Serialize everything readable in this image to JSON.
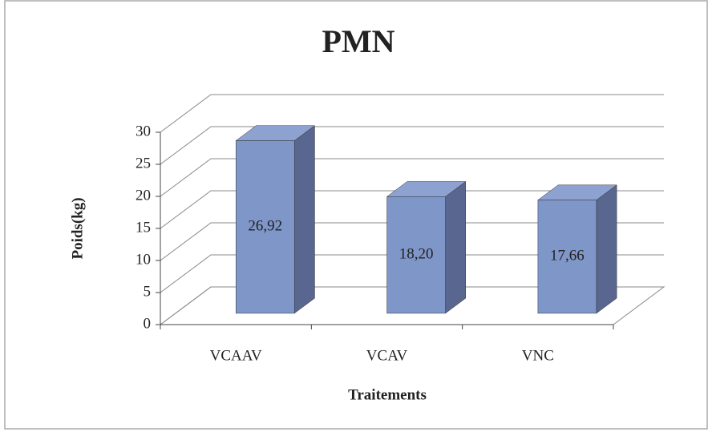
{
  "chart_data": {
    "type": "bar3d",
    "title": "PMN",
    "x_label": "Traitements",
    "y_label": "Poids(kg)",
    "categories": [
      "VCAAV",
      "VCAV",
      "VNC"
    ],
    "values": [
      26.92,
      18.2,
      17.66
    ],
    "value_labels": [
      "26,92",
      "18,20",
      "17,66"
    ],
    "color": "#7f96c8",
    "ylim": [
      0,
      30
    ],
    "yticks": [
      0,
      5,
      10,
      15,
      20,
      25,
      30
    ],
    "grid": true
  }
}
